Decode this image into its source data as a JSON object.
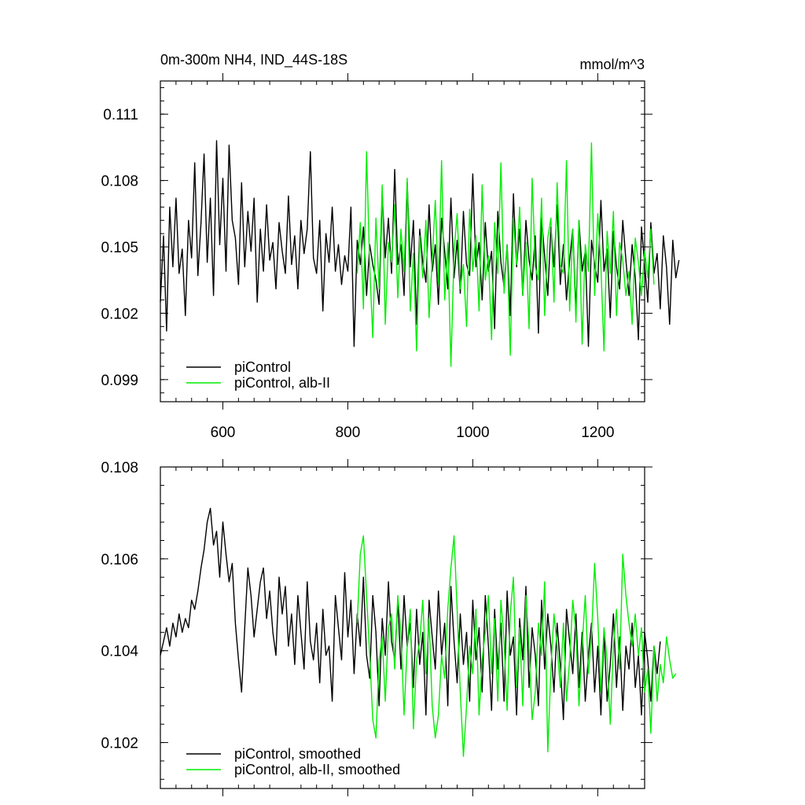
{
  "chart_data": [
    {
      "type": "line",
      "title": "0m-300m NH4, IND_44S-18S",
      "units": "mmol/m^3",
      "xlim": [
        500,
        1275
      ],
      "ylim": [
        0.098,
        0.1125
      ],
      "xticks": [
        600,
        800,
        1000,
        1200
      ],
      "xtick_labels": [
        "600",
        "800",
        "1000",
        "1200"
      ],
      "yticks": [
        0.099,
        0.102,
        0.105,
        0.108,
        0.111
      ],
      "ytick_labels": [
        "0.099",
        "0.102",
        "0.105",
        "0.108",
        "0.111"
      ],
      "legend": "bottom-left",
      "series": [
        {
          "name": "piControl",
          "color": "#000000",
          "x_start": 500,
          "x_step": 5,
          "values": [
            0.1025,
            0.1055,
            0.1012,
            0.1068,
            0.1041,
            0.1072,
            0.1038,
            0.1049,
            0.1019,
            0.1062,
            0.1045,
            0.1088,
            0.1037,
            0.1061,
            0.1092,
            0.1043,
            0.1072,
            0.1028,
            0.1098,
            0.1051,
            0.1081,
            0.1039,
            0.1096,
            0.1062,
            0.1054,
            0.1033,
            0.1079,
            0.1041,
            0.1066,
            0.1048,
            0.1072,
            0.1025,
            0.1058,
            0.1039,
            0.1069,
            0.1044,
            0.1052,
            0.1031,
            0.1061,
            0.1048,
            0.1038,
            0.1073,
            0.1042,
            0.1055,
            0.1031,
            0.1062,
            0.1047,
            0.1058,
            0.1093,
            0.1045,
            0.1038,
            0.1062,
            0.1021,
            0.1056,
            0.1043,
            0.1068,
            0.1039,
            0.1051,
            0.1033,
            0.1046,
            0.1039,
            0.1068,
            0.1005,
            0.1053,
            0.1042,
            0.1059,
            0.1028,
            0.1051,
            0.1042,
            0.1035,
            0.1024,
            0.1074,
            0.1045,
            0.1063,
            0.1038,
            0.1085,
            0.1042,
            0.1051,
            0.1028,
            0.1079,
            0.1041,
            0.1062,
            0.1015,
            0.1058,
            0.1043,
            0.1034,
            0.1069,
            0.1039,
            0.1051,
            0.1024,
            0.1063,
            0.1048,
            0.1031,
            0.1072,
            0.1036,
            0.1053,
            0.1029,
            0.1066,
            0.1042,
            0.1037,
            0.1083,
            0.1041,
            0.1052,
            0.1026,
            0.1061,
            0.1039,
            0.1048,
            0.1013,
            0.1066,
            0.1043,
            0.1032,
            0.1051,
            0.1019,
            0.1074,
            0.1041,
            0.1058,
            0.1028,
            0.1062,
            0.1044,
            0.1035,
            0.1055,
            0.1011,
            0.1063,
            0.1046,
            0.1028,
            0.1059,
            0.1041,
            0.1069,
            0.1033,
            0.1051,
            0.1026,
            0.1044,
            0.1058,
            0.1021,
            0.1062,
            0.1039,
            0.1048,
            0.1005,
            0.1053,
            0.1042,
            0.1034,
            0.1071,
            0.1039,
            0.1049,
            0.1018,
            0.1057,
            0.1041,
            0.1031,
            0.1062,
            0.1044,
            0.1028,
            0.1051,
            0.1036,
            0.1008,
            0.1059,
            0.1042,
            0.1025,
            0.1061,
            0.1038,
            0.1047,
            0.1022,
            0.1055,
            0.1041,
            0.1015,
            0.1053,
            0.1036,
            0.1044
          ]
        },
        {
          "name": "piControl, alb-II",
          "color": "#00ee00",
          "x_start": 815,
          "x_step": 5,
          "values": [
            0.1038,
            0.1061,
            0.1022,
            0.1093,
            0.1041,
            0.1009,
            0.1063,
            0.1031,
            0.1078,
            0.1015,
            0.1052,
            0.1043,
            0.1069,
            0.1027,
            0.1058,
            0.1039,
            0.1081,
            0.1021,
            0.1047,
            0.1003,
            0.1055,
            0.1036,
            0.1062,
            0.1018,
            0.1044,
            0.1071,
            0.1033,
            0.1089,
            0.1026,
            0.1052,
            0.0996,
            0.1048,
            0.1065,
            0.1031,
            0.1042,
            0.1014,
            0.1067,
            0.1039,
            0.1055,
            0.1021,
            0.1078,
            0.1035,
            0.1046,
            0.1008,
            0.1061,
            0.1038,
            0.1088,
            0.1029,
            0.1051,
            0.1001,
            0.1063,
            0.1042,
            0.1068,
            0.1028,
            0.1052,
            0.1013,
            0.1081,
            0.1041,
            0.1035,
            0.1072,
            0.1019,
            0.1054,
            0.1063,
            0.1025,
            0.1079,
            0.1042,
            0.1038,
            0.1089,
            0.1021,
            0.1058,
            0.1016,
            0.1062,
            0.1006,
            0.1051,
            0.1039,
            0.1097,
            0.1028,
            0.1065,
            0.1041,
            0.1003,
            0.1057,
            0.1038,
            0.1066,
            0.1019,
            0.1052,
            0.1044,
            0.1028,
            0.1039,
            0.1015,
            0.1054,
            0.1043,
            0.1028,
            0.1048,
            0.1036,
            0.1058,
            0.1033
          ]
        }
      ]
    },
    {
      "type": "line",
      "title": "",
      "xlim": [
        500,
        1275
      ],
      "ylim": [
        0.101,
        0.108
      ],
      "xticks": [
        600,
        800,
        1000,
        1200
      ],
      "xtick_labels": [],
      "yticks": [
        0.102,
        0.104,
        0.106,
        0.108
      ],
      "ytick_labels": [
        "0.102",
        "0.104",
        "0.106",
        "0.108"
      ],
      "legend": "bottom-left",
      "series": [
        {
          "name": "piControl, smoothed",
          "color": "#000000",
          "x_start": 500,
          "x_step": 5,
          "values": [
            0.1039,
            0.1042,
            0.1045,
            0.1041,
            0.1046,
            0.1043,
            0.1048,
            0.1044,
            0.1047,
            0.1045,
            0.1051,
            0.1049,
            0.1053,
            0.1058,
            0.1062,
            0.1068,
            0.1071,
            0.1063,
            0.1066,
            0.1056,
            0.1068,
            0.1061,
            0.1055,
            0.1059,
            0.1046,
            0.1038,
            0.1031,
            0.1045,
            0.1058,
            0.1052,
            0.1043,
            0.1049,
            0.1055,
            0.1058,
            0.1047,
            0.1053,
            0.1044,
            0.1039,
            0.1056,
            0.1048,
            0.1054,
            0.1041,
            0.1048,
            0.1037,
            0.1052,
            0.1044,
            0.1036,
            0.1055,
            0.1042,
            0.1038,
            0.1046,
            0.1033,
            0.1049,
            0.1039,
            0.1041,
            0.1029,
            0.1052,
            0.1045,
            0.1038,
            0.1057,
            0.1043,
            0.1051,
            0.1035,
            0.1048,
            0.1041,
            0.1056,
            0.1039,
            0.1034,
            0.1052,
            0.1044,
            0.1028,
            0.1047,
            0.1039,
            0.1055,
            0.1042,
            0.1038,
            0.1051,
            0.1036,
            0.1052,
            0.1041,
            0.1046,
            0.1032,
            0.1049,
            0.1037,
            0.1044,
            0.1026,
            0.1051,
            0.1043,
            0.1036,
            0.1053,
            0.1039,
            0.1046,
            0.1028,
            0.1054,
            0.1042,
            0.1033,
            0.1048,
            0.1037,
            0.1044,
            0.1029,
            0.1051,
            0.1038,
            0.1045,
            0.1031,
            0.1052,
            0.1041,
            0.1027,
            0.1049,
            0.1036,
            0.1046,
            0.1029,
            0.1053,
            0.1039,
            0.1043,
            0.1026,
            0.1047,
            0.1038,
            0.1054,
            0.1032,
            0.1045,
            0.1039,
            0.1028,
            0.1051,
            0.1036,
            0.1048,
            0.1041,
            0.1031,
            0.1046,
            0.1037,
            0.1025,
            0.1049,
            0.1042,
            0.1035,
            0.1048,
            0.1032,
            0.1044,
            0.1029,
            0.1039,
            0.1046,
            0.1031,
            0.1041,
            0.1026,
            0.1044,
            0.1029,
            0.1037,
            0.1048,
            0.1032,
            0.1043,
            0.1027,
            0.1041,
            0.1036,
            0.1046,
            0.1032,
            0.1039,
            0.1026,
            0.1044,
            0.1038,
            0.1029,
            0.1041,
            0.1035,
            0.1042
          ]
        },
        {
          "name": "piControl, alb-II, smoothed",
          "color": "#00ee00",
          "x_start": 815,
          "x_step": 5,
          "values": [
            0.1046,
            0.1061,
            0.1065,
            0.1052,
            0.1039,
            0.1025,
            0.1021,
            0.1038,
            0.1043,
            0.1029,
            0.1045,
            0.1048,
            0.1036,
            0.1052,
            0.1044,
            0.1026,
            0.1041,
            0.1049,
            0.1023,
            0.1038,
            0.1042,
            0.1051,
            0.1035,
            0.1047,
            0.1028,
            0.1021,
            0.1026,
            0.1039,
            0.1034,
            0.1049,
            0.1058,
            0.1065,
            0.1049,
            0.1031,
            0.1017,
            0.1028,
            0.1041,
            0.1035,
            0.1049,
            0.1026,
            0.1038,
            0.1044,
            0.1052,
            0.1035,
            0.1047,
            0.1029,
            0.1051,
            0.1042,
            0.1027,
            0.1048,
            0.1056,
            0.1032,
            0.1045,
            0.1028,
            0.1052,
            0.1041,
            0.1025,
            0.1031,
            0.1046,
            0.1039,
            0.1055,
            0.1018,
            0.1036,
            0.1048,
            0.1041,
            0.1032,
            0.1046,
            0.1029,
            0.1038,
            0.1051,
            0.1044,
            0.1028,
            0.1041,
            0.1052,
            0.1035,
            0.1043,
            0.1059,
            0.1047,
            0.1031,
            0.1045,
            0.1038,
            0.1024,
            0.1041,
            0.1049,
            0.1036,
            0.1061,
            0.1052,
            0.1046,
            0.1041,
            0.1048,
            0.1039,
            0.1045,
            0.1031,
            0.1036,
            0.1022,
            0.1041,
            0.1029,
            0.1037,
            0.1033,
            0.1043,
            0.1038,
            0.1034,
            0.1035
          ]
        }
      ]
    }
  ]
}
